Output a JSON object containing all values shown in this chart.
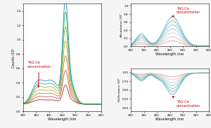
{
  "figure_bg": "#f5f5f5",
  "n_curves": 7,
  "wavelength_min": 300,
  "wavelength_max": 600,
  "left_ylabel": "Counts /10⁵",
  "tr_ylabel": "Absorbance /10⁰",
  "br_ylabel": "Reflectance /10⁰",
  "xlabel": "Wavelength /nm",
  "annotation": "YAG:Ce\nconcentration",
  "arrow_color": "#cc0000",
  "left_colors": [
    "#8b1a1a",
    "#c04444",
    "#d07030",
    "#c8a000",
    "#70b840",
    "#20a878",
    "#10889a"
  ],
  "right_colors": [
    "#e09090",
    "#e0b0a0",
    "#c0c8d0",
    "#90c0d0",
    "#70b8c8",
    "#50b0b8",
    "#40a8a0"
  ],
  "left_ylim": [
    0,
    1.5
  ],
  "left_yticks": [
    0.0,
    0.2,
    0.4,
    0.6,
    0.8,
    1.0,
    1.2,
    1.4
  ],
  "left_xticks": [
    300,
    350,
    400,
    450,
    500,
    550,
    600
  ],
  "tr_ylim": [
    0.0,
    1.05
  ],
  "tr_yticks": [
    0.0,
    0.2,
    0.4,
    0.6,
    0.8,
    1.0
  ],
  "tr_xticks": [
    300,
    350,
    400,
    450,
    500,
    550,
    600
  ],
  "br_ylim": [
    -0.1,
    1.1
  ],
  "br_yticks": [
    0.0,
    0.25,
    0.5,
    0.75,
    1.0
  ],
  "br_xticks": [
    300,
    350,
    400,
    450,
    500,
    550,
    600
  ]
}
